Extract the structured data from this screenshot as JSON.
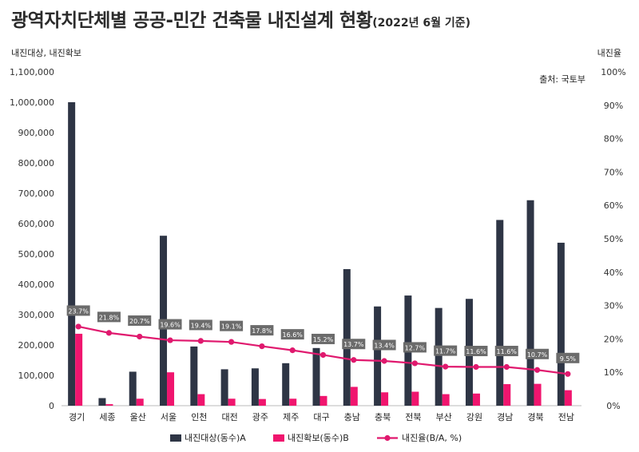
{
  "chart_data": {
    "type": "bar",
    "title": "광역자치단체별 공공-민간 건축물 내진설계 현황",
    "subtitle": "(2022년 6월 기준)",
    "y_left_label": "내진대상, 내진확보",
    "y_right_label": "내진율",
    "source": "출처: 국토부",
    "ylim_left": [
      0,
      1100000
    ],
    "ylim_right": [
      0,
      100
    ],
    "y_left_ticks": [
      "0",
      "100,000",
      "200,000",
      "300,000",
      "400,000",
      "500,000",
      "600,000",
      "700,000",
      "800,000",
      "900,000",
      "1,000,000",
      "1,100,000"
    ],
    "y_right_ticks": [
      "0%",
      "10%",
      "20%",
      "30%",
      "40%",
      "50%",
      "60%",
      "70%",
      "80%",
      "90%",
      "100%"
    ],
    "categories": [
      "경기",
      "세종",
      "울산",
      "서울",
      "인천",
      "대전",
      "광주",
      "제주",
      "대구",
      "충남",
      "충북",
      "전북",
      "부산",
      "강원",
      "경남",
      "경북",
      "전남"
    ],
    "series": [
      {
        "name": "내진대상(동수)A",
        "type": "bar",
        "axis": "left",
        "color": "#2e3545",
        "values": [
          1000000,
          25000,
          112000,
          560000,
          195000,
          120000,
          123000,
          140000,
          190000,
          450000,
          327000,
          363000,
          322000,
          352000,
          612000,
          677000,
          537000
        ]
      },
      {
        "name": "내진확보(동수)B",
        "type": "bar",
        "axis": "left",
        "color": "#f0156e",
        "values": [
          237000,
          5000,
          23000,
          110000,
          38000,
          23000,
          22000,
          23000,
          32000,
          62000,
          44000,
          46000,
          38000,
          40000,
          71000,
          72000,
          51000
        ]
      },
      {
        "name": "내진율(B/A, %)",
        "type": "line",
        "axis": "right",
        "color": "#e0196e",
        "values": [
          23.7,
          21.8,
          20.7,
          19.6,
          19.4,
          19.1,
          17.8,
          16.6,
          15.2,
          13.7,
          13.4,
          12.7,
          11.7,
          11.6,
          11.6,
          10.7,
          9.5
        ],
        "labels": [
          "23.7%",
          "21.8%",
          "20.7%",
          "19.6%",
          "19.4%",
          "19.1%",
          "17.8%",
          "16.6%",
          "15.2%",
          "13.7%",
          "13.4%",
          "12.7%",
          "11.7%",
          "11.6%",
          "11.6%",
          "10.7%",
          "9.5%"
        ]
      }
    ],
    "grid": false,
    "legend_position": "bottom",
    "label_box_color": "#6b6b6b"
  }
}
